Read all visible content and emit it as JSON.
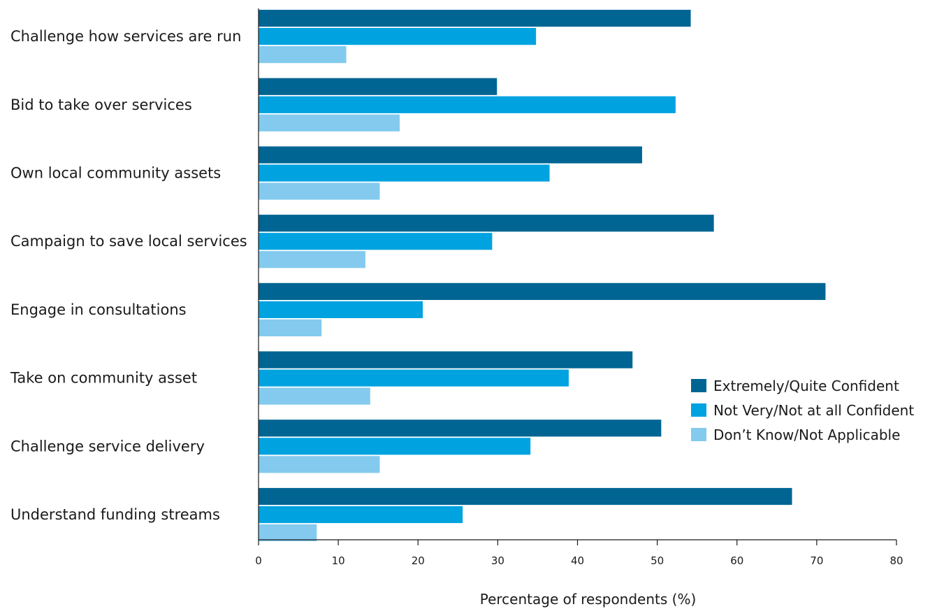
{
  "chart_data": {
    "type": "bar",
    "orientation": "horizontal",
    "categories": [
      "Challenge how services are run",
      "Bid to take over services",
      "Own local community assets",
      "Campaign to save local services",
      "Engage in consultations",
      "Take on community asset",
      "Challenge service delivery",
      "Understand funding streams"
    ],
    "series": [
      {
        "name": "Extremely/Quite Confident",
        "color": "#006593",
        "values": [
          54.2,
          29.9,
          48.1,
          57.1,
          71.1,
          46.9,
          50.5,
          66.9
        ]
      },
      {
        "name": "Not Very/Not at all Confident",
        "color": "#00A3E0",
        "values": [
          34.8,
          52.3,
          36.5,
          29.3,
          20.6,
          38.9,
          34.1,
          25.6
        ]
      },
      {
        "name": "Don’t Know/Not Applicable",
        "color": "#83CAEE",
        "values": [
          11.0,
          17.7,
          15.2,
          13.4,
          7.9,
          14.0,
          15.2,
          7.3
        ]
      }
    ],
    "xlabel": "Percentage of respondents (%)",
    "xlim": [
      0,
      80
    ],
    "xticks": [
      0,
      10,
      20,
      30,
      40,
      50,
      60,
      70,
      80
    ],
    "grid": false,
    "legend_position": "right"
  }
}
